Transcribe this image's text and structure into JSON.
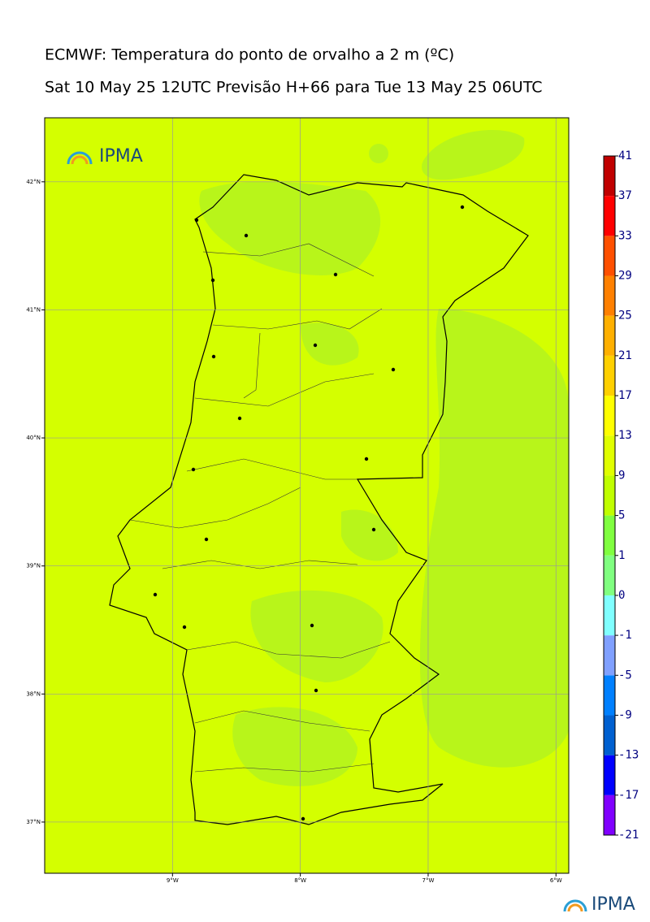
{
  "header": {
    "title": "ECMWF: Temperatura do ponto de orvalho a 2 m (ºC)",
    "subtitle": "Sat 10 May 25 12UTC Previsão H+66 para Tue 13 May 25 06UTC"
  },
  "map": {
    "xlim": [
      -10,
      -5.9
    ],
    "ylim": [
      36.6,
      42.5
    ],
    "xticks": [
      {
        "value": -9,
        "label": "9°W"
      },
      {
        "value": -8,
        "label": "8°W"
      },
      {
        "value": -7,
        "label": "7°W"
      },
      {
        "value": -6,
        "label": "6°W"
      }
    ],
    "yticks": [
      {
        "value": 42,
        "label": "42°N"
      },
      {
        "value": 41,
        "label": "41°N"
      },
      {
        "value": 40,
        "label": "40°N"
      },
      {
        "value": 39,
        "label": "39°N"
      },
      {
        "value": 38,
        "label": "38°N"
      },
      {
        "value": 37,
        "label": "37°N"
      }
    ],
    "grid": true
  },
  "colorbar": {
    "levels": [
      -21,
      -17,
      -13,
      -9,
      -5,
      -1,
      0,
      1,
      5,
      9,
      13,
      17,
      21,
      25,
      29,
      33,
      37,
      41
    ],
    "colors": [
      "#8000ff",
      "#0000ff",
      "#0060d0",
      "#0080ff",
      "#80a0ff",
      "#80ffff",
      "#80ff80",
      "#80ff40",
      "#c0ff00",
      "#e0ff00",
      "#ffff00",
      "#ffd000",
      "#ffb000",
      "#ff8000",
      "#ff5000",
      "#ff0000",
      "#c00000"
    ]
  },
  "logo": {
    "top": "IPMA",
    "bottom": "IPMA"
  }
}
